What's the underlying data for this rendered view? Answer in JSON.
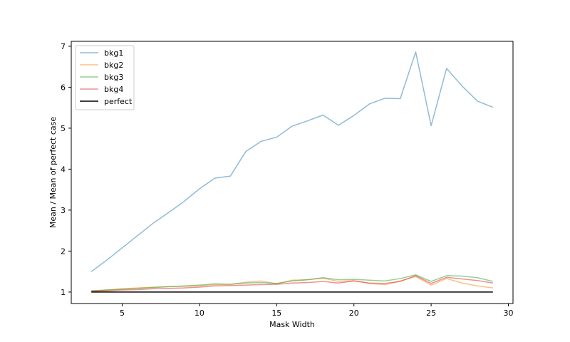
{
  "chart_data": {
    "type": "line",
    "title": "",
    "xlabel": "Mask Width",
    "ylabel": "Mean / Mean of perfect case",
    "xlim": [
      1.7,
      30.3
    ],
    "ylim": [
      0.72,
      7.12
    ],
    "xticks": [
      5,
      10,
      15,
      20,
      25,
      30
    ],
    "yticks": [
      1,
      2,
      3,
      4,
      5,
      6,
      7
    ],
    "grid": false,
    "legend_position": "upper-left",
    "x": [
      3,
      4,
      5,
      6,
      7,
      8,
      9,
      10,
      11,
      12,
      13,
      14,
      15,
      16,
      17,
      18,
      19,
      20,
      21,
      22,
      23,
      24,
      25,
      26,
      27,
      28,
      29
    ],
    "series": [
      {
        "name": "bkg1",
        "color": "#1f77b4",
        "alpha": 0.5,
        "values": [
          1.5,
          1.78,
          2.08,
          2.38,
          2.68,
          2.94,
          3.21,
          3.52,
          3.78,
          3.83,
          4.43,
          4.68,
          4.78,
          5.05,
          5.18,
          5.32,
          5.07,
          5.31,
          5.59,
          5.73,
          5.72,
          6.86,
          5.06,
          6.46,
          6.03,
          5.66,
          5.51
        ]
      },
      {
        "name": "bkg2",
        "color": "#ff7f0e",
        "alpha": 0.5,
        "values": [
          1.02,
          1.05,
          1.08,
          1.1,
          1.12,
          1.13,
          1.14,
          1.15,
          1.18,
          1.19,
          1.24,
          1.27,
          1.2,
          1.29,
          1.3,
          1.34,
          1.26,
          1.28,
          1.21,
          1.18,
          1.27,
          1.38,
          1.17,
          1.33,
          1.22,
          1.15,
          1.1
        ]
      },
      {
        "name": "bkg3",
        "color": "#2ca02c",
        "alpha": 0.5,
        "values": [
          1.03,
          1.05,
          1.07,
          1.09,
          1.11,
          1.13,
          1.15,
          1.17,
          1.2,
          1.19,
          1.22,
          1.23,
          1.21,
          1.27,
          1.3,
          1.35,
          1.3,
          1.31,
          1.29,
          1.27,
          1.33,
          1.42,
          1.26,
          1.4,
          1.39,
          1.35,
          1.26
        ]
      },
      {
        "name": "bkg4",
        "color": "#d62728",
        "alpha": 0.5,
        "values": [
          1.02,
          1.03,
          1.05,
          1.06,
          1.08,
          1.09,
          1.1,
          1.12,
          1.15,
          1.16,
          1.17,
          1.18,
          1.19,
          1.22,
          1.23,
          1.26,
          1.22,
          1.27,
          1.22,
          1.21,
          1.26,
          1.4,
          1.21,
          1.36,
          1.32,
          1.28,
          1.22
        ]
      },
      {
        "name": "perfect",
        "color": "#000000",
        "alpha": 1,
        "values": [
          1,
          1,
          1,
          1,
          1,
          1,
          1,
          1,
          1,
          1,
          1,
          1,
          1,
          1,
          1,
          1,
          1,
          1,
          1,
          1,
          1,
          1,
          1,
          1,
          1,
          1,
          1
        ]
      }
    ]
  }
}
